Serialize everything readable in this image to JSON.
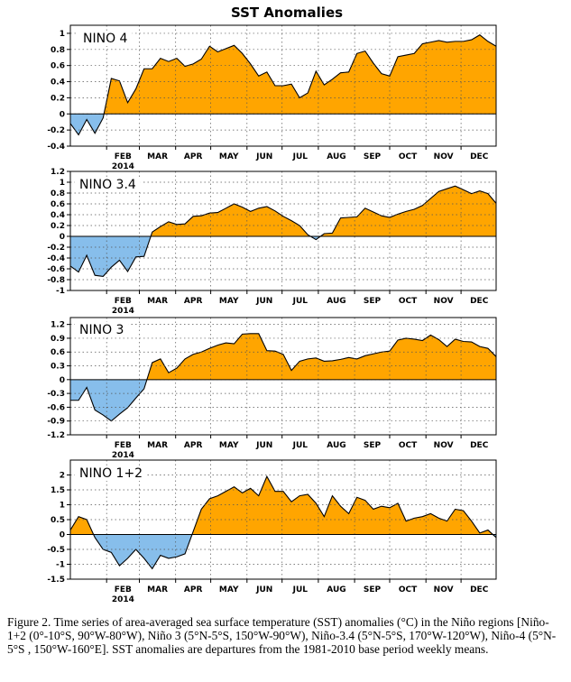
{
  "figure_title": "SST Anomalies",
  "caption": "Figure 2. Time series of area-averaged sea surface temperature (SST) anomalies (°C) in the Niño regions [Niño-1+2 (0°-10°S, 90°W-80°W), Niño 3 (5°N-5°S, 150°W-90°W), Niño-3.4 (5°N-5°S, 170°W-120°W), Niño-4 (5°N-5°S , 150°W-160°E]. SST anomalies are departures from the 1981-2010 base period weekly means.",
  "colors": {
    "positive": "#FFA500",
    "negative": "#87BEEB",
    "line": "#000000"
  },
  "chart_data": [
    {
      "type": "area",
      "label": "NINO 4",
      "year_label": "2014",
      "month_labels": [
        "FEB",
        "MAR",
        "APR",
        "MAY",
        "JUN",
        "JUL",
        "AUG",
        "SEP",
        "OCT",
        "NOV",
        "DEC"
      ],
      "ylim": [
        -0.4,
        1.1
      ],
      "yticks": [
        -0.4,
        -0.2,
        0,
        0.2,
        0.4,
        0.6,
        0.8,
        1
      ],
      "ytick_labels": [
        "-0.4",
        "-0.2",
        "0",
        "0.2",
        "0.4",
        "0.6",
        "0.8",
        "1"
      ],
      "x": [
        "2014-01-01",
        "2014-01-08",
        "2014-01-15",
        "2014-01-22",
        "2014-01-29",
        "2014-02-05",
        "2014-02-12",
        "2014-02-19",
        "2014-02-26",
        "2014-03-05",
        "2014-03-12",
        "2014-03-19",
        "2014-03-26",
        "2014-04-02",
        "2014-04-09",
        "2014-04-16",
        "2014-04-23",
        "2014-04-30",
        "2014-05-07",
        "2014-05-14",
        "2014-05-21",
        "2014-05-28",
        "2014-06-04",
        "2014-06-11",
        "2014-06-18",
        "2014-06-25",
        "2014-07-02",
        "2014-07-09",
        "2014-07-16",
        "2014-07-23",
        "2014-07-30",
        "2014-08-06",
        "2014-08-13",
        "2014-08-20",
        "2014-08-27",
        "2014-09-03",
        "2014-09-10",
        "2014-09-17",
        "2014-09-24",
        "2014-10-01",
        "2014-10-08",
        "2014-10-15",
        "2014-10-22",
        "2014-10-29",
        "2014-11-05",
        "2014-11-12",
        "2014-11-19",
        "2014-11-26",
        "2014-12-03",
        "2014-12-10",
        "2014-12-17",
        "2014-12-24",
        "2014-12-31"
      ],
      "values": [
        -0.12,
        -0.26,
        -0.07,
        -0.24,
        -0.05,
        0.44,
        0.41,
        0.14,
        0.31,
        0.56,
        0.56,
        0.69,
        0.65,
        0.69,
        0.59,
        0.62,
        0.68,
        0.84,
        0.77,
        0.81,
        0.85,
        0.75,
        0.62,
        0.47,
        0.52,
        0.35,
        0.35,
        0.37,
        0.2,
        0.26,
        0.53,
        0.36,
        0.43,
        0.51,
        0.52,
        0.75,
        0.78,
        0.63,
        0.5,
        0.47,
        0.71,
        0.73,
        0.75,
        0.87,
        0.89,
        0.91,
        0.89,
        0.9,
        0.9,
        0.92,
        0.98,
        0.9,
        0.84
      ]
    },
    {
      "type": "area",
      "label": "NINO 3.4",
      "year_label": "2014",
      "month_labels": [
        "FEB",
        "MAR",
        "APR",
        "MAY",
        "JUN",
        "JUL",
        "AUG",
        "SEP",
        "OCT",
        "NOV",
        "DEC"
      ],
      "ylim": [
        -1.0,
        1.2
      ],
      "yticks": [
        -1,
        -0.8,
        -0.6,
        -0.4,
        -0.2,
        0,
        0.2,
        0.4,
        0.6,
        0.8,
        1,
        1.2
      ],
      "ytick_labels": [
        "-1",
        "-0.8",
        "-0.6",
        "-0.4",
        "-0.2",
        "0",
        "0.2",
        "0.4",
        "0.6",
        "0.8",
        "1",
        "1.2"
      ],
      "x": [
        "2014-01-01",
        "2014-01-08",
        "2014-01-15",
        "2014-01-22",
        "2014-01-29",
        "2014-02-05",
        "2014-02-12",
        "2014-02-19",
        "2014-02-26",
        "2014-03-05",
        "2014-03-12",
        "2014-03-19",
        "2014-03-26",
        "2014-04-02",
        "2014-04-09",
        "2014-04-16",
        "2014-04-23",
        "2014-04-30",
        "2014-05-07",
        "2014-05-14",
        "2014-05-21",
        "2014-05-28",
        "2014-06-04",
        "2014-06-11",
        "2014-06-18",
        "2014-06-25",
        "2014-07-02",
        "2014-07-09",
        "2014-07-16",
        "2014-07-23",
        "2014-07-30",
        "2014-08-06",
        "2014-08-13",
        "2014-08-20",
        "2014-08-27",
        "2014-09-03",
        "2014-09-10",
        "2014-09-17",
        "2014-09-24",
        "2014-10-01",
        "2014-10-08",
        "2014-10-15",
        "2014-10-22",
        "2014-10-29",
        "2014-11-05",
        "2014-11-12",
        "2014-11-19",
        "2014-11-26",
        "2014-12-03",
        "2014-12-10",
        "2014-12-17",
        "2014-12-24",
        "2014-12-31"
      ],
      "values": [
        -0.55,
        -0.66,
        -0.35,
        -0.72,
        -0.74,
        -0.57,
        -0.44,
        -0.65,
        -0.38,
        -0.37,
        0.08,
        0.18,
        0.27,
        0.22,
        0.23,
        0.37,
        0.38,
        0.43,
        0.44,
        0.52,
        0.6,
        0.54,
        0.46,
        0.52,
        0.55,
        0.47,
        0.37,
        0.29,
        0.2,
        0.03,
        -0.06,
        0.05,
        0.06,
        0.34,
        0.35,
        0.36,
        0.52,
        0.45,
        0.38,
        0.35,
        0.41,
        0.46,
        0.5,
        0.57,
        0.7,
        0.83,
        0.88,
        0.93,
        0.86,
        0.79,
        0.84,
        0.79,
        0.61
      ]
    },
    {
      "type": "area",
      "label": "NINO 3",
      "year_label": "2014",
      "month_labels": [
        "FEB",
        "MAR",
        "APR",
        "MAY",
        "JUN",
        "JUL",
        "AUG",
        "SEP",
        "OCT",
        "NOV",
        "DEC"
      ],
      "ylim": [
        -1.2,
        1.35
      ],
      "yticks": [
        -1.2,
        -0.9,
        -0.6,
        -0.3,
        0,
        0.3,
        0.6,
        0.9,
        1.2
      ],
      "ytick_labels": [
        "-1.2",
        "-0.9",
        "-0.6",
        "-0.3",
        "0",
        "0.3",
        "0.6",
        "0.9",
        "1.2"
      ],
      "x": [
        "2014-01-01",
        "2014-01-08",
        "2014-01-15",
        "2014-01-22",
        "2014-01-29",
        "2014-02-05",
        "2014-02-12",
        "2014-02-19",
        "2014-02-26",
        "2014-03-05",
        "2014-03-12",
        "2014-03-19",
        "2014-03-26",
        "2014-04-02",
        "2014-04-09",
        "2014-04-16",
        "2014-04-23",
        "2014-04-30",
        "2014-05-07",
        "2014-05-14",
        "2014-05-21",
        "2014-05-28",
        "2014-06-04",
        "2014-06-11",
        "2014-06-18",
        "2014-06-25",
        "2014-07-02",
        "2014-07-09",
        "2014-07-16",
        "2014-07-23",
        "2014-07-30",
        "2014-08-06",
        "2014-08-13",
        "2014-08-20",
        "2014-08-27",
        "2014-09-03",
        "2014-09-10",
        "2014-09-17",
        "2014-09-24",
        "2014-10-01",
        "2014-10-08",
        "2014-10-15",
        "2014-10-22",
        "2014-10-29",
        "2014-11-05",
        "2014-11-12",
        "2014-11-19",
        "2014-11-26",
        "2014-12-03",
        "2014-12-10",
        "2014-12-17",
        "2014-12-24",
        "2014-12-31"
      ],
      "values": [
        -0.45,
        -0.45,
        -0.17,
        -0.66,
        -0.77,
        -0.9,
        -0.75,
        -0.61,
        -0.4,
        -0.2,
        0.37,
        0.45,
        0.15,
        0.25,
        0.45,
        0.55,
        0.6,
        0.68,
        0.75,
        0.8,
        0.78,
        0.99,
        1.0,
        1.0,
        0.63,
        0.62,
        0.55,
        0.2,
        0.4,
        0.45,
        0.47,
        0.4,
        0.41,
        0.44,
        0.48,
        0.45,
        0.52,
        0.56,
        0.6,
        0.62,
        0.86,
        0.9,
        0.88,
        0.85,
        0.97,
        0.87,
        0.72,
        0.88,
        0.83,
        0.82,
        0.72,
        0.68,
        0.5
      ]
    },
    {
      "type": "area",
      "label": "NINO 1+2",
      "year_label": "2014",
      "month_labels": [
        "FEB",
        "MAR",
        "APR",
        "MAY",
        "JUN",
        "JUL",
        "AUG",
        "SEP",
        "OCT",
        "NOV",
        "DEC"
      ],
      "ylim": [
        -1.5,
        2.5
      ],
      "yticks": [
        -1.5,
        -1,
        -0.5,
        0,
        0.5,
        1,
        1.5,
        2
      ],
      "ytick_labels": [
        "-1.5",
        "-1",
        "-0.5",
        "0",
        "0.5",
        "1",
        "1.5",
        "2"
      ],
      "x": [
        "2014-01-01",
        "2014-01-08",
        "2014-01-15",
        "2014-01-22",
        "2014-01-29",
        "2014-02-05",
        "2014-02-12",
        "2014-02-19",
        "2014-02-26",
        "2014-03-05",
        "2014-03-12",
        "2014-03-19",
        "2014-03-26",
        "2014-04-02",
        "2014-04-09",
        "2014-04-16",
        "2014-04-23",
        "2014-04-30",
        "2014-05-07",
        "2014-05-14",
        "2014-05-21",
        "2014-05-28",
        "2014-06-04",
        "2014-06-11",
        "2014-06-18",
        "2014-06-25",
        "2014-07-02",
        "2014-07-09",
        "2014-07-16",
        "2014-07-23",
        "2014-07-30",
        "2014-08-06",
        "2014-08-13",
        "2014-08-20",
        "2014-08-27",
        "2014-09-03",
        "2014-09-10",
        "2014-09-17",
        "2014-09-24",
        "2014-10-01",
        "2014-10-08",
        "2014-10-15",
        "2014-10-22",
        "2014-10-29",
        "2014-11-05",
        "2014-11-12",
        "2014-11-19",
        "2014-11-26",
        "2014-12-03",
        "2014-12-10",
        "2014-12-17",
        "2014-12-24",
        "2014-12-31"
      ],
      "values": [
        0.15,
        0.6,
        0.5,
        -0.1,
        -0.5,
        -0.6,
        -1.05,
        -0.8,
        -0.5,
        -0.8,
        -1.15,
        -0.7,
        -0.8,
        -0.75,
        -0.65,
        0.1,
        0.85,
        1.2,
        1.3,
        1.45,
        1.6,
        1.4,
        1.55,
        1.3,
        1.95,
        1.45,
        1.45,
        1.1,
        1.3,
        1.35,
        1.05,
        0.6,
        1.3,
        0.95,
        0.7,
        1.25,
        1.15,
        0.85,
        0.95,
        0.9,
        1.05,
        0.45,
        0.55,
        0.6,
        0.7,
        0.55,
        0.45,
        0.85,
        0.8,
        0.45,
        0.05,
        0.15,
        -0.1
      ]
    }
  ]
}
